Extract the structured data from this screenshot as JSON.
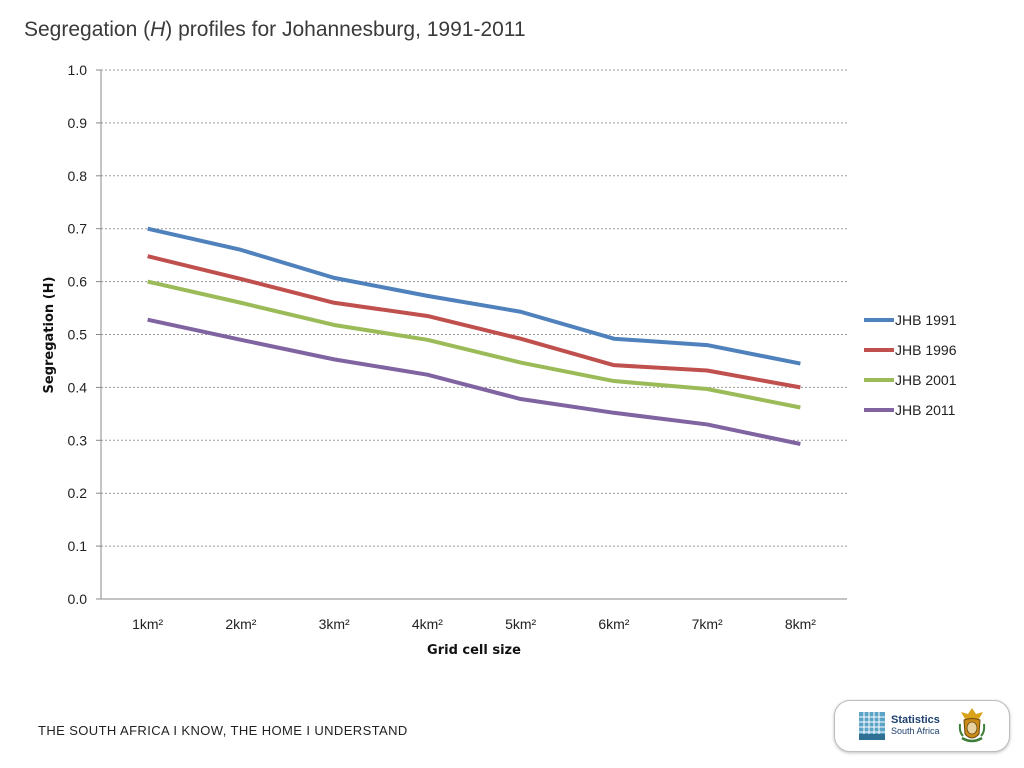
{
  "title": {
    "before": "Segregation (",
    "italic": "H",
    "after": ") profiles for Johannesburg, 1991-2011"
  },
  "footer": {
    "tagline": "THE SOUTH AFRICA I KNOW, THE HOME I UNDERSTAND"
  },
  "logo": {
    "name": "Statistics",
    "sub": "South Africa"
  },
  "chart_data": {
    "type": "line",
    "title": "Segregation (H) profiles for Johannesburg, 1991-2011",
    "xlabel": "Grid cell size",
    "ylabel": "Segregation (H)",
    "categories": [
      "1km²",
      "2km²",
      "3km²",
      "4km²",
      "5km²",
      "6km²",
      "7km²",
      "8km²"
    ],
    "ylim": [
      0,
      1.0
    ],
    "yticks": [
      "0.0",
      "0.1",
      "0.2",
      "0.3",
      "0.4",
      "0.5",
      "0.6",
      "0.7",
      "0.8",
      "0.9",
      "1.0"
    ],
    "grid": true,
    "legend_position": "right",
    "series": [
      {
        "name": "JHB 1991",
        "color": "#4f81bd",
        "values": [
          0.7,
          0.66,
          0.607,
          0.573,
          0.543,
          0.492,
          0.48,
          0.445
        ]
      },
      {
        "name": "JHB 1996",
        "color": "#c0504d",
        "values": [
          0.648,
          0.605,
          0.56,
          0.535,
          0.492,
          0.442,
          0.432,
          0.4
        ]
      },
      {
        "name": "JHB 2001",
        "color": "#9bbb59",
        "values": [
          0.6,
          0.56,
          0.518,
          0.49,
          0.447,
          0.412,
          0.397,
          0.362
        ]
      },
      {
        "name": "JHB 2011",
        "color": "#8064a2",
        "values": [
          0.528,
          0.49,
          0.453,
          0.424,
          0.378,
          0.352,
          0.33,
          0.293
        ]
      }
    ]
  }
}
